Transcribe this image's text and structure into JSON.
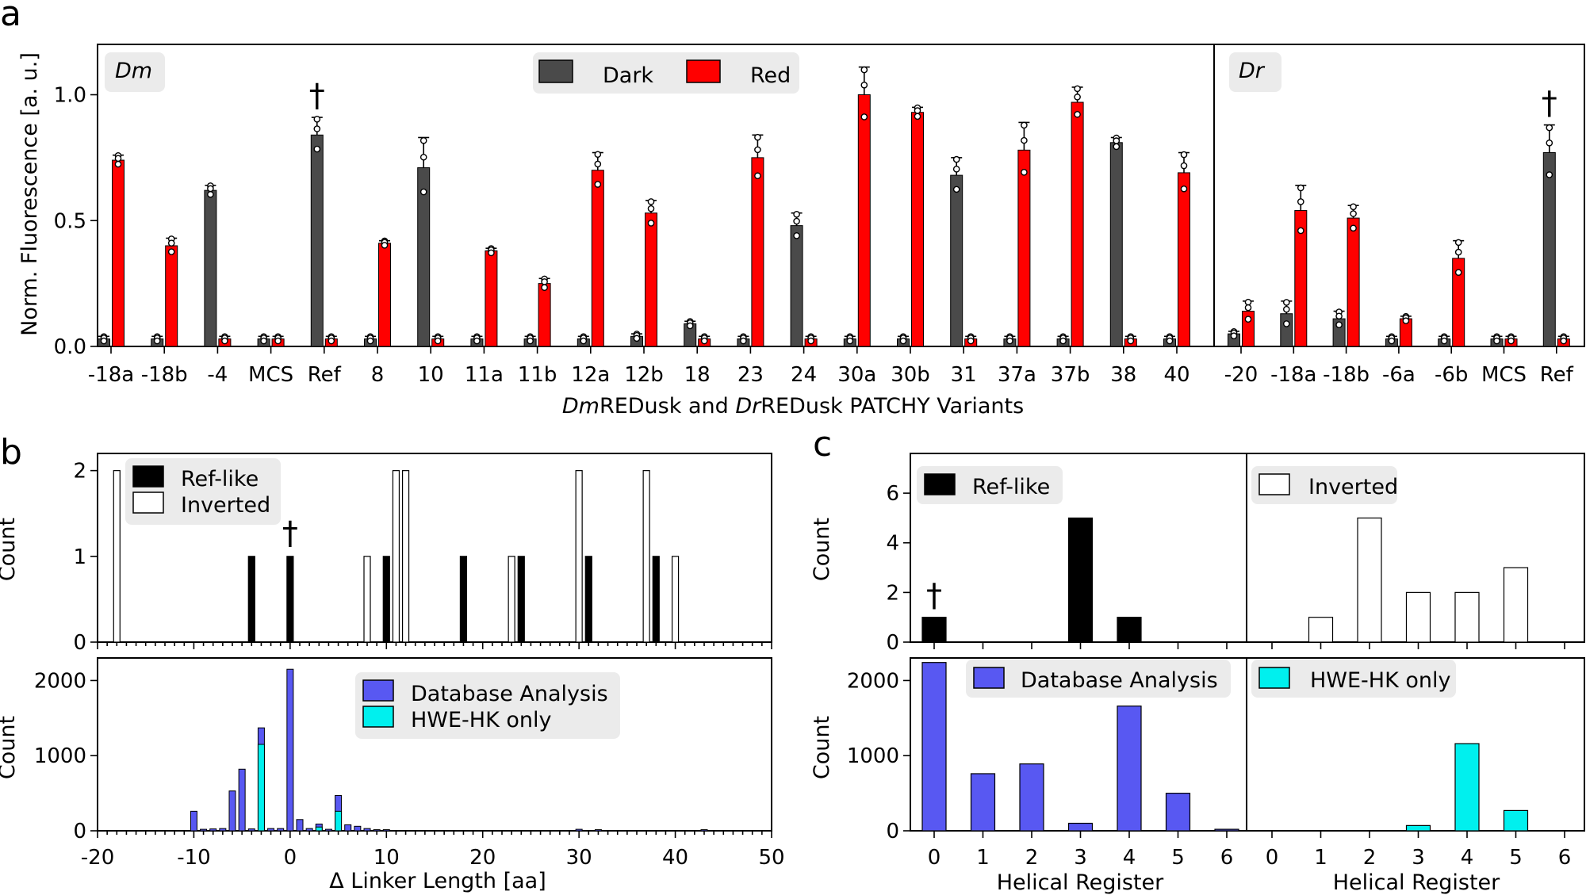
{
  "colors": {
    "dark": "#4a4a4a",
    "red": "#ff0000",
    "ref_like": "#000000",
    "inverted": "#ffffff",
    "database": "#5858f2",
    "hwe": "#00f0ee"
  },
  "chart_data": [
    {
      "id": "a",
      "panel_label": "a",
      "type": "bar",
      "ylabel": "Norm. Fluorescence [a. u.]",
      "xlabel_parts": [
        {
          "text": "Dm",
          "italic": true
        },
        {
          "text": "REDusk and ",
          "italic": false
        },
        {
          "text": "Dr",
          "italic": true
        },
        {
          "text": "REDusk PATCHY Variants",
          "italic": false
        }
      ],
      "ylim": [
        0,
        1.2
      ],
      "yticks": [
        "0.0",
        "0.5",
        "1.0"
      ],
      "ytick_values": [
        0,
        0.5,
        1.0
      ],
      "legend": {
        "dark": "Dark",
        "red": "Red"
      },
      "dagger": "†",
      "subpanels": [
        {
          "label": "Dm",
          "categories": [
            "-18a",
            "-18b",
            "-4",
            "MCS",
            "Ref",
            "8",
            "10",
            "11a",
            "11b",
            "12a",
            "12b",
            "18",
            "23",
            "24",
            "30a",
            "30b",
            "31",
            "37a",
            "37b",
            "38",
            "40"
          ],
          "series": [
            {
              "name": "Dark",
              "values": [
                0.03,
                0.03,
                0.62,
                0.03,
                0.84,
                0.03,
                0.71,
                0.03,
                0.03,
                0.03,
                0.04,
                0.09,
                0.03,
                0.48,
                0.03,
                0.03,
                0.68,
                0.03,
                0.03,
                0.81,
                0.03
              ],
              "err": [
                0.01,
                0.01,
                0.02,
                0.01,
                0.07,
                0.01,
                0.12,
                0.01,
                0.01,
                0.01,
                0.01,
                0.01,
                0.01,
                0.05,
                0.01,
                0.01,
                0.07,
                0.01,
                0.01,
                0.02,
                0.01
              ]
            },
            {
              "name": "Red",
              "values": [
                0.74,
                0.4,
                0.03,
                0.03,
                0.03,
                0.41,
                0.03,
                0.38,
                0.25,
                0.7,
                0.53,
                0.03,
                0.75,
                0.03,
                1.0,
                0.93,
                0.03,
                0.78,
                0.97,
                0.03,
                0.69
              ],
              "err": [
                0.02,
                0.03,
                0.01,
                0.01,
                0.01,
                0.01,
                0.01,
                0.01,
                0.02,
                0.07,
                0.05,
                0.01,
                0.09,
                0.01,
                0.11,
                0.02,
                0.01,
                0.11,
                0.06,
                0.01,
                0.08
              ]
            }
          ],
          "dagger_category": "Ref"
        },
        {
          "label": "Dr",
          "categories": [
            "-20",
            "-18a",
            "-18b",
            "-6a",
            "-6b",
            "MCS",
            "Ref"
          ],
          "series": [
            {
              "name": "Dark",
              "values": [
                0.05,
                0.13,
                0.11,
                0.03,
                0.03,
                0.03,
                0.77
              ],
              "err": [
                0.01,
                0.05,
                0.03,
                0.01,
                0.01,
                0.01,
                0.11
              ]
            },
            {
              "name": "Red",
              "values": [
                0.14,
                0.54,
                0.51,
                0.11,
                0.35,
                0.03,
                0.03
              ],
              "err": [
                0.04,
                0.1,
                0.05,
                0.01,
                0.07,
                0.01,
                0.01
              ]
            }
          ],
          "dagger_category": "Ref"
        }
      ]
    },
    {
      "id": "b",
      "panel_label": "b",
      "type": "bar",
      "xlabel": "Δ Linker Length [aa]",
      "xlim": [
        -20,
        50
      ],
      "xticks": [
        -20,
        -10,
        0,
        10,
        20,
        30,
        40,
        50
      ],
      "dagger": "†",
      "top": {
        "ylabel": "Count",
        "ylim": [
          0,
          2.2
        ],
        "yticks": [
          0,
          1,
          2
        ],
        "legend": {
          "ref_like": "Ref-like",
          "inverted": "Inverted"
        },
        "ref_like": {
          "x": [
            -4,
            0,
            10,
            18,
            24,
            31,
            38
          ],
          "values": [
            1,
            1,
            1,
            1,
            1,
            1,
            1
          ]
        },
        "inverted": {
          "x": [
            -18,
            8,
            11,
            12,
            23,
            30,
            37,
            40
          ],
          "values": [
            2,
            1,
            2,
            2,
            1,
            2,
            2,
            1
          ]
        },
        "dagger_x": 0
      },
      "bottom": {
        "ylabel": "Count",
        "ylim": [
          0,
          2300
        ],
        "yticks": [
          0,
          1000,
          2000
        ],
        "legend": {
          "database": "Database Analysis",
          "hwe": "HWE-HK only"
        },
        "database": {
          "x": [
            -10,
            -9,
            -8,
            -7,
            -6,
            -5,
            -4,
            -3,
            -2,
            -1,
            0,
            1,
            2,
            3,
            4,
            5,
            6,
            7,
            8,
            9,
            10,
            30,
            32,
            43
          ],
          "values": [
            260,
            20,
            25,
            30,
            530,
            820,
            25,
            1370,
            30,
            30,
            2150,
            150,
            30,
            90,
            20,
            470,
            80,
            60,
            30,
            15,
            15,
            20,
            15,
            15
          ]
        },
        "hwe": {
          "x": [
            -3,
            3,
            5
          ],
          "values": [
            1150,
            50,
            260
          ]
        }
      }
    },
    {
      "id": "c",
      "panel_label": "c",
      "type": "bar",
      "xlabel": "Helical Register",
      "xticks": [
        0,
        1,
        2,
        3,
        4,
        5,
        6
      ],
      "dagger": "†",
      "top_ylim": [
        0,
        7.6
      ],
      "top_yticks": [
        0,
        2,
        4,
        6
      ],
      "top_ylabel": "Count",
      "bottom_ylim": [
        0,
        2300
      ],
      "bottom_yticks": [
        0,
        1000,
        2000
      ],
      "bottom_ylabel": "Count",
      "ref_like": {
        "legend": "Ref-like",
        "values": [
          1,
          0,
          0,
          5,
          1,
          0,
          0
        ],
        "dagger_x": 0
      },
      "inverted": {
        "legend": "Inverted",
        "values": [
          0,
          1,
          5,
          2,
          2,
          3,
          0
        ]
      },
      "database": {
        "legend": "Database Analysis",
        "values": [
          2240,
          760,
          890,
          100,
          1660,
          500,
          20
        ]
      },
      "hwe": {
        "legend": "HWE-HK only",
        "values": [
          0,
          0,
          0,
          70,
          1160,
          270,
          0
        ]
      }
    }
  ]
}
